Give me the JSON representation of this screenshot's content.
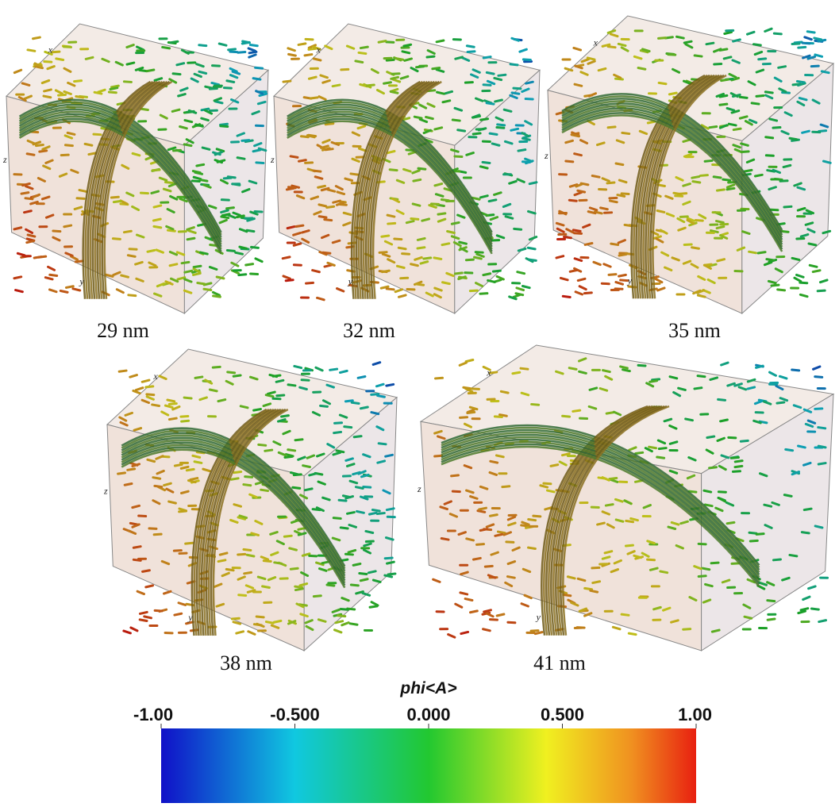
{
  "panels": [
    {
      "label": "29 nm",
      "axes": {
        "x": "x",
        "y": "y",
        "z": "z"
      }
    },
    {
      "label": "32 nm",
      "axes": {
        "x": "x",
        "y": "y",
        "z": "z"
      }
    },
    {
      "label": "35 nm",
      "axes": {
        "x": "x",
        "y": "y",
        "z": "z"
      }
    },
    {
      "label": "38 nm",
      "axes": {
        "x": "x",
        "y": "y",
        "z": "z"
      }
    },
    {
      "label": "41 nm",
      "axes": {
        "x": "x",
        "y": "y",
        "z": "z"
      }
    }
  ],
  "colorbar": {
    "title": "phi<A>",
    "range": [
      -1,
      1
    ],
    "ticks": [
      {
        "value": -1,
        "label": "-1.00"
      },
      {
        "value": -0.5,
        "label": "-0.500"
      },
      {
        "value": 0,
        "label": "0.000"
      },
      {
        "value": 0.5,
        "label": "0.500"
      },
      {
        "value": 1,
        "label": "1.00"
      }
    ]
  }
}
